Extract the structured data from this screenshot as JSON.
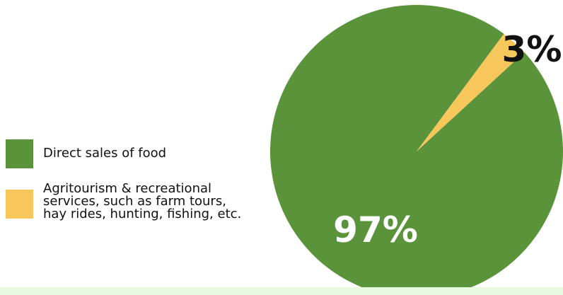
{
  "colors": {
    "food": "#5b933a",
    "agritourism": "#f7c75c",
    "footer_band": "#e8fbe1"
  },
  "chart_data": {
    "type": "pie",
    "title": "",
    "legend_position": "left",
    "slices": [
      {
        "label": "Direct sales of food",
        "value": 97,
        "display": "97%",
        "color": "#5b933a"
      },
      {
        "label": "Agritourism & recreational\nservices, such as farm tours,\nhay rides, hunting, fishing, etc.",
        "value": 3,
        "display": "3%",
        "color": "#f7c75c"
      }
    ]
  }
}
